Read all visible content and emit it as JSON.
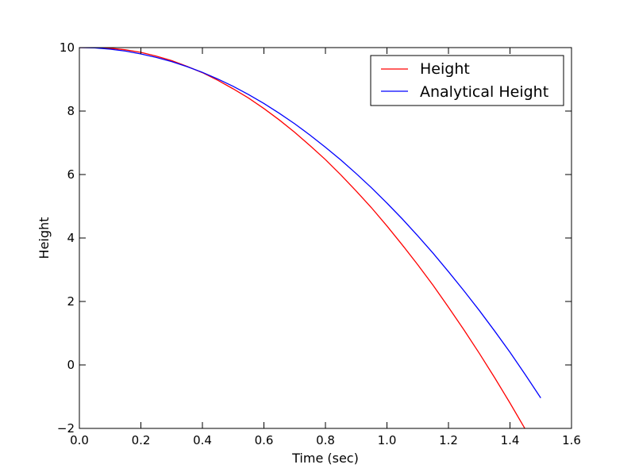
{
  "chart_data": {
    "type": "line",
    "title": "",
    "xlabel": "Time (sec)",
    "ylabel": "Height",
    "xlim": [
      0.0,
      1.6
    ],
    "ylim": [
      -2,
      10
    ],
    "xticks": [
      0.0,
      0.2,
      0.4,
      0.6,
      0.8,
      1.0,
      1.2,
      1.4,
      1.6
    ],
    "xtick_labels": [
      "0.0",
      "0.2",
      "0.4",
      "0.6",
      "0.8",
      "1.0",
      "1.2",
      "1.4",
      "1.6"
    ],
    "yticks": [
      -2,
      0,
      2,
      4,
      6,
      8,
      10
    ],
    "ytick_labels": [
      "−2",
      "0",
      "2",
      "4",
      "6",
      "8",
      "10"
    ],
    "grid": false,
    "legend_position": "top-right",
    "series": [
      {
        "name": "Height",
        "color": "#ff0000",
        "x": [
          0.0,
          0.05,
          0.1,
          0.15,
          0.2,
          0.25,
          0.3,
          0.35,
          0.4,
          0.45,
          0.5,
          0.55,
          0.6,
          0.65,
          0.7,
          0.75,
          0.8,
          0.85,
          0.9,
          0.95,
          1.0,
          1.05,
          1.1,
          1.15,
          1.2,
          1.25,
          1.3,
          1.35,
          1.4,
          1.45,
          1.5
        ],
        "y": [
          10.0,
          10.0,
          9.98,
          9.93,
          9.85,
          9.73,
          9.59,
          9.41,
          9.21,
          8.97,
          8.7,
          8.41,
          8.08,
          7.72,
          7.33,
          6.91,
          6.47,
          5.99,
          5.48,
          4.95,
          4.38,
          3.78,
          3.16,
          2.51,
          1.82,
          1.11,
          0.37,
          -0.4,
          -1.2,
          -2.03,
          -2.89
        ]
      },
      {
        "name": "Analytical Height",
        "color": "#0000ff",
        "x": [
          0.0,
          0.05,
          0.1,
          0.15,
          0.2,
          0.25,
          0.3,
          0.35,
          0.4,
          0.45,
          0.5,
          0.55,
          0.6,
          0.65,
          0.7,
          0.75,
          0.8,
          0.85,
          0.9,
          0.95,
          1.0,
          1.05,
          1.1,
          1.15,
          1.2,
          1.25,
          1.3,
          1.35,
          1.4,
          1.45,
          1.5
        ],
        "y": [
          10.0,
          9.99,
          9.95,
          9.89,
          9.8,
          9.69,
          9.56,
          9.4,
          9.22,
          9.01,
          8.78,
          8.52,
          8.24,
          7.93,
          7.6,
          7.24,
          6.86,
          6.46,
          6.03,
          5.58,
          5.1,
          4.6,
          4.07,
          3.52,
          2.94,
          2.34,
          1.72,
          1.07,
          0.4,
          -0.31,
          -1.04
        ]
      }
    ]
  }
}
